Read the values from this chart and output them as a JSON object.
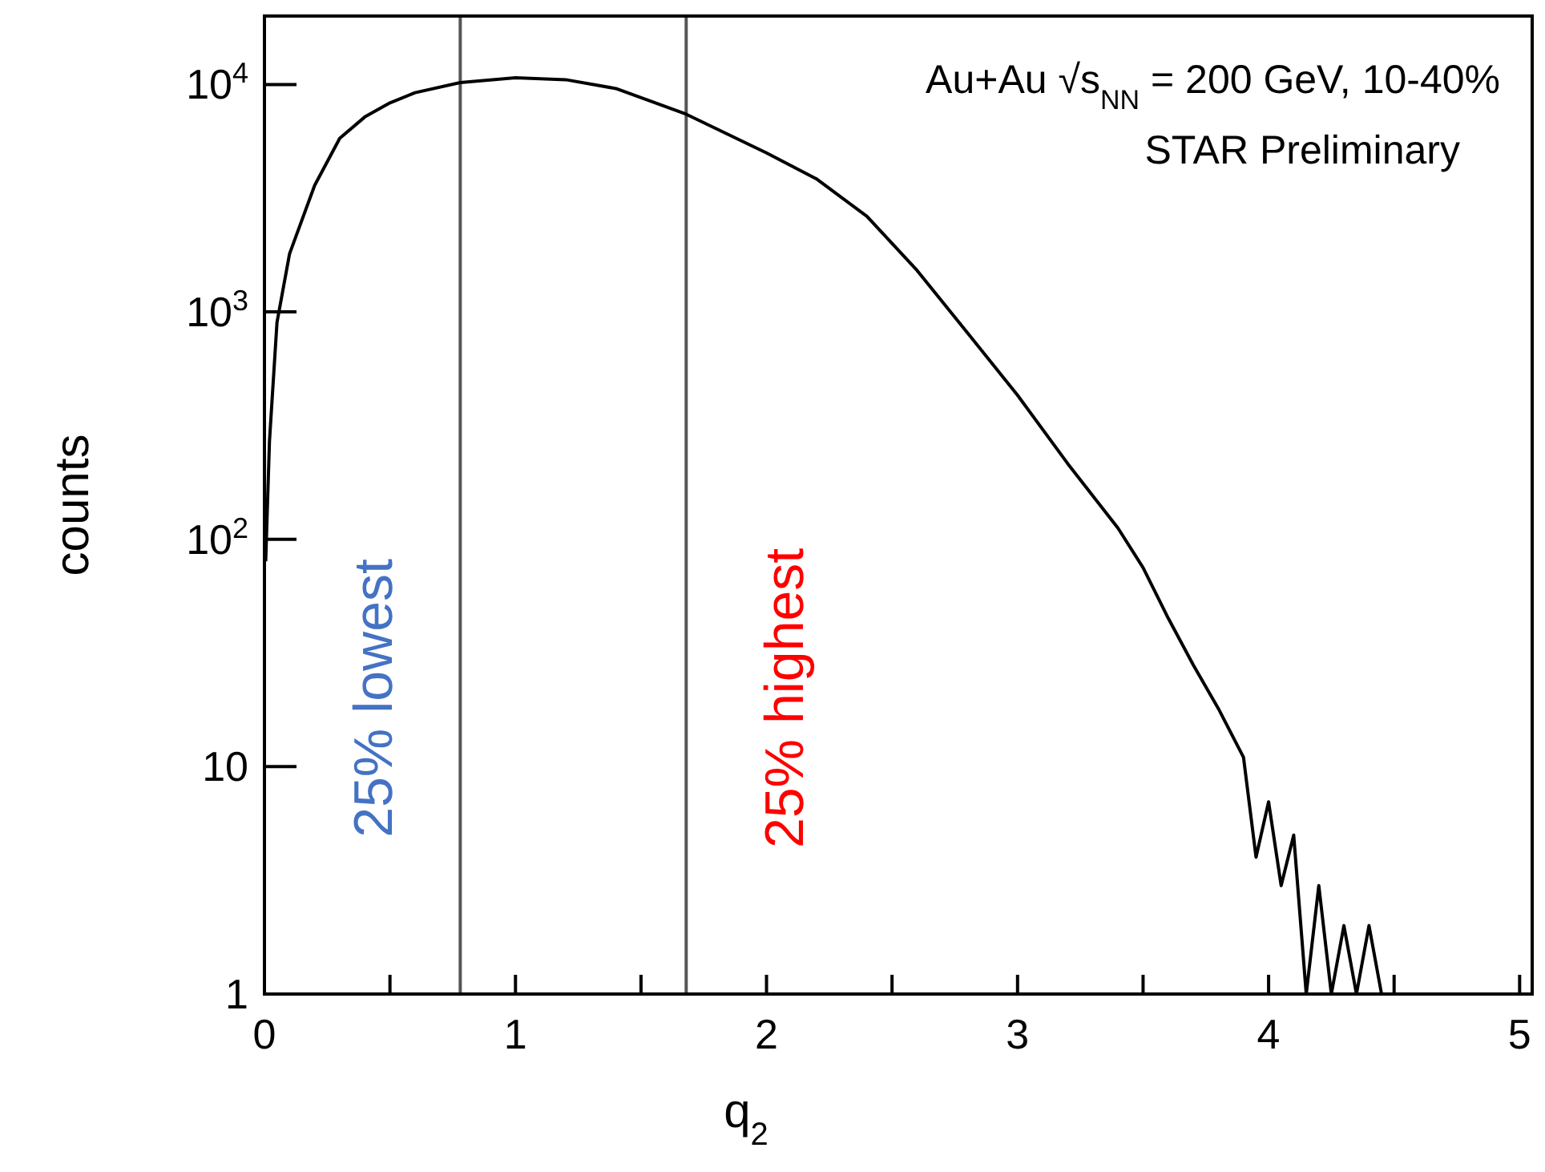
{
  "chart_data": {
    "type": "line",
    "xlabel": "q$_{2}$",
    "ylabel": "counts",
    "x": [
      0.005,
      0.02,
      0.05,
      0.1,
      0.2,
      0.3,
      0.4,
      0.5,
      0.6,
      0.78,
      1.0,
      1.2,
      1.4,
      1.68,
      2.0,
      2.2,
      2.4,
      2.6,
      2.8,
      3.0,
      3.2,
      3.4,
      3.5,
      3.6,
      3.7,
      3.8,
      3.9,
      3.95,
      4.0,
      4.05,
      4.1,
      4.15,
      4.2,
      4.25,
      4.3,
      4.35,
      4.4,
      4.45,
      4.5,
      4.55,
      4.6,
      4.65,
      4.7,
      4.8
    ],
    "series": [
      {
        "color": "#000000",
        "values": [
          80,
          270,
          900,
          1800,
          3600,
          5800,
          7200,
          8300,
          9200,
          10200,
          10700,
          10500,
          9600,
          7400,
          5000,
          3840,
          2630,
          1520,
          810,
          430,
          215,
          112,
          75,
          45,
          28,
          18,
          11,
          4,
          7,
          3,
          5,
          1,
          3,
          1,
          2,
          1,
          2,
          1,
          1,
          1,
          1,
          1,
          1,
          1
        ]
      }
    ],
    "xlim": [
      0,
      5.05
    ],
    "xticks": [
      0,
      {
        "value": 0.5,
        "label": null
      },
      1,
      {
        "value": 1.5,
        "label": null
      },
      2,
      {
        "value": 2.5,
        "label": null
      },
      3,
      {
        "value": 3.5,
        "label": null
      },
      4,
      {
        "value": 4.5,
        "label": null
      },
      5
    ],
    "ylim": [
      1,
      20000
    ],
    "log": true,
    "yticks": [
      1,
      10,
      {
        "value": 100,
        "label": "10$^{2}$"
      },
      {
        "value": 1000,
        "label": "10$^{3}$"
      },
      {
        "value": 10000,
        "label": "10$^{4}$"
      }
    ],
    "ref_lines": [
      {
        "axis": "x",
        "value": 0.78,
        "color": "#555555"
      },
      {
        "axis": "x",
        "value": 1.68,
        "color": "#555555"
      }
    ],
    "annotations": [
      "Au+Au √s$_{NN}$ = 200 GeV, 10-40%",
      "STAR Preliminary",
      "25%  lowest",
      "25%  highest"
    ],
    "grid": false,
    "legend": false
  }
}
